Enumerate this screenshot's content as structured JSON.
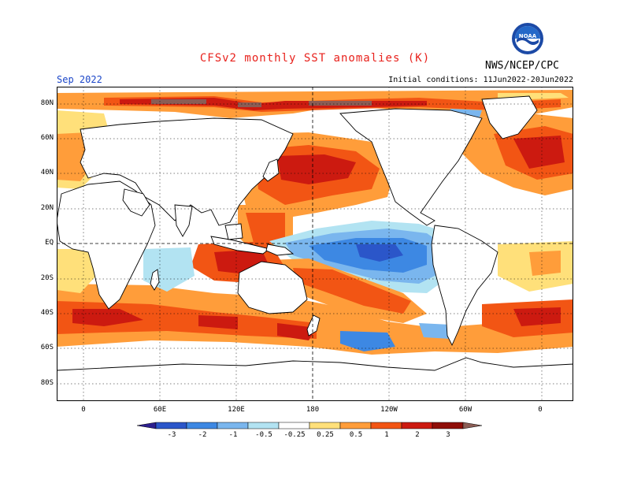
{
  "title": "CFSv2 monthly SST anomalies (K)",
  "forecast_month": "Sep 2022",
  "agency": "NWS/NCEP/CPC",
  "logo_text": "NOAA",
  "initial_conditions": "Initial conditions: 11Jun2022-20Jun2022",
  "lat_labels": [
    "80N",
    "60N",
    "40N",
    "20N",
    "EQ",
    "20S",
    "40S",
    "60S",
    "80S"
  ],
  "lon_labels": [
    "0",
    "60E",
    "120E",
    "180",
    "120W",
    "60W",
    "0"
  ],
  "colorbar": {
    "labels": [
      "-3",
      "-2",
      "-1",
      "-0.5",
      "-0.25",
      "0.25",
      "0.5",
      "1",
      "2",
      "3"
    ],
    "colors": [
      "#2d1f8f",
      "#2b56c9",
      "#3d88e3",
      "#7ab6ee",
      "#b2e3f2",
      "#ffffff",
      "#ffe07a",
      "#ff9d3a",
      "#f25514",
      "#cc1a10",
      "#8f0e08",
      "#8b5d55"
    ]
  }
}
